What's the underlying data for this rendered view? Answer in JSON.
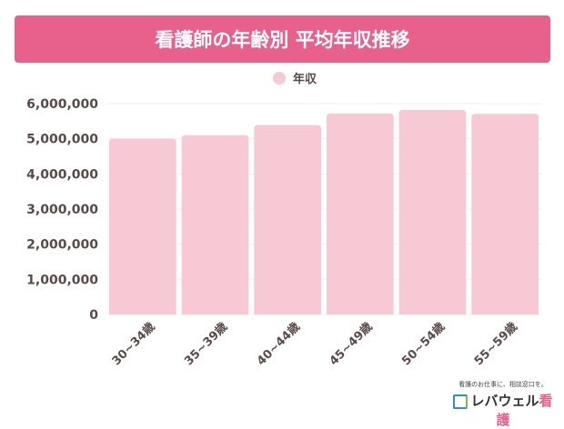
{
  "title": "看護師の年齢別 平均年収推移",
  "chart_data": {
    "type": "bar",
    "title": "看護師の年齢別 平均年収推移",
    "categories": [
      "30~34歳",
      "35~39歳",
      "40~44歳",
      "45~49歳",
      "50~54歳",
      "55~59歳"
    ],
    "series": [
      {
        "name": "年収",
        "values": [
          5000000,
          5100000,
          5390000,
          5720000,
          5820000,
          5710000
        ]
      }
    ],
    "yticks": [
      "0",
      "1,000,000",
      "2,000,000",
      "3,000,000",
      "4,000,000",
      "5,000,000",
      "6,000,000"
    ],
    "ylim": [
      0,
      6000000
    ],
    "grid": true,
    "legend": "top-center",
    "colors": {
      "bar": "#f6c9d4",
      "banner": "#e8618c"
    }
  },
  "logo": {
    "tagline": "看護のお仕事に、相談窓口を。",
    "name": "レバウェル",
    "name_accent": "看護"
  }
}
